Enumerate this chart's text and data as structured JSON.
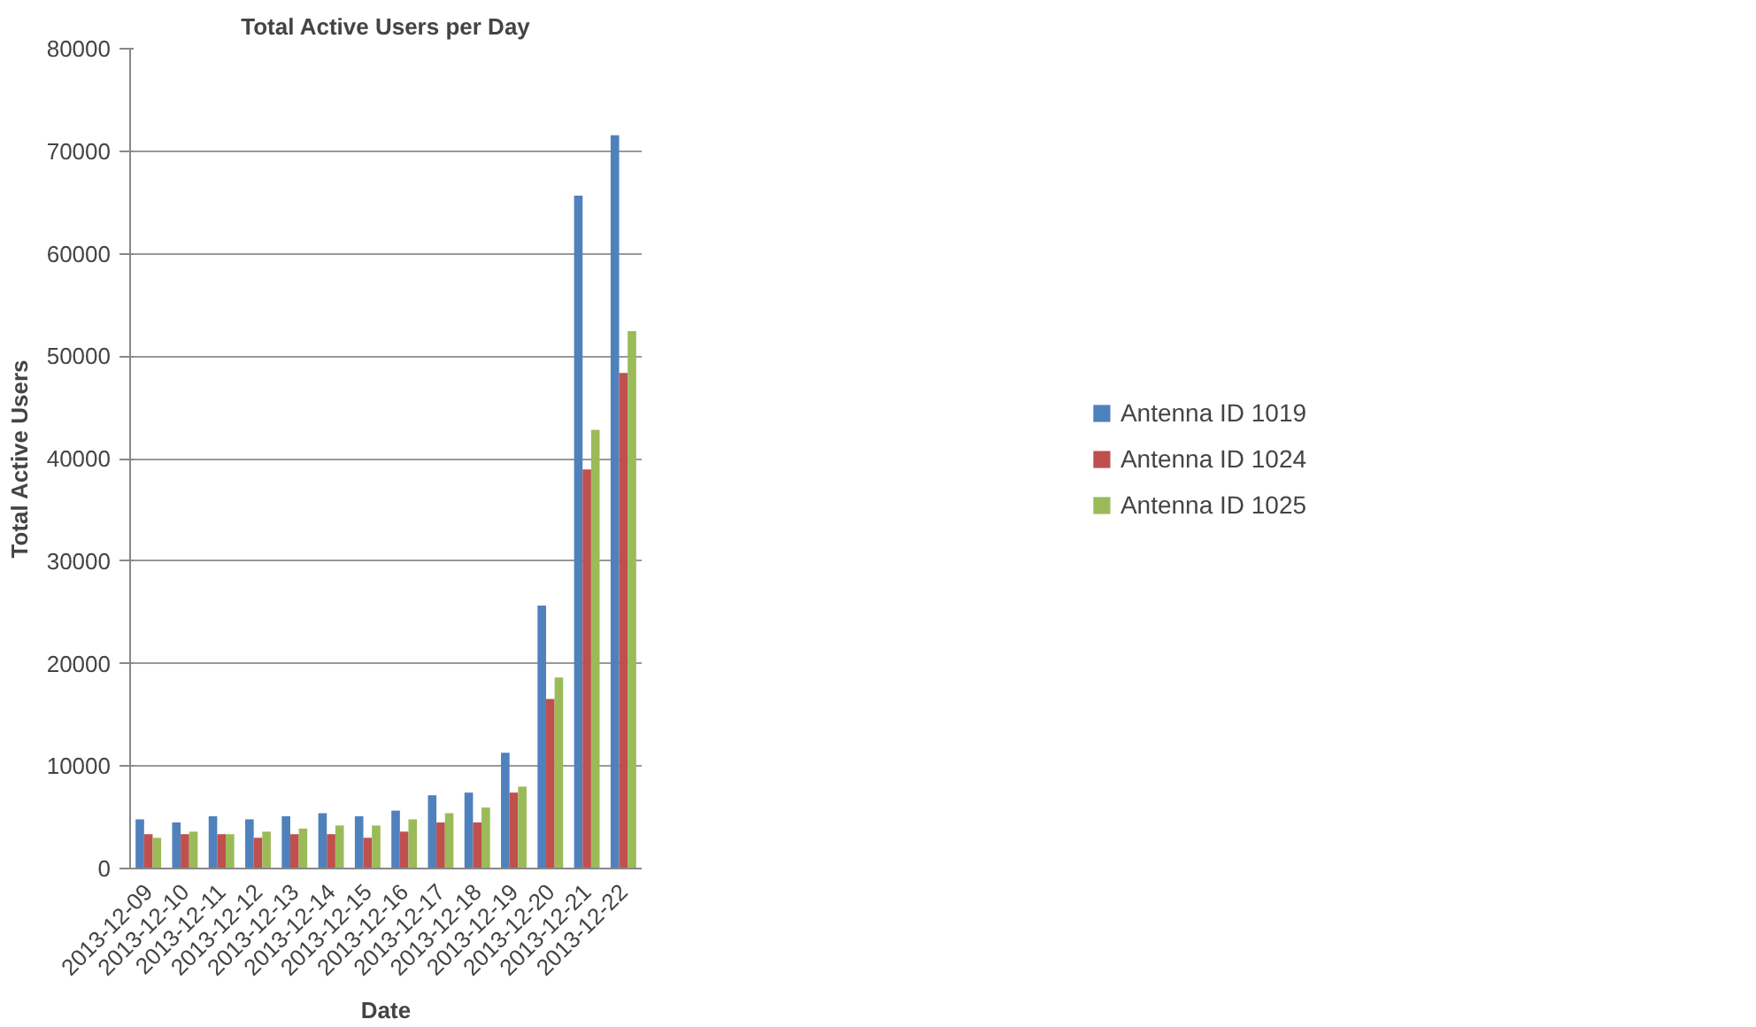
{
  "chart_data": {
    "type": "bar",
    "title": "Total Active Users per Day",
    "xlabel": "Date",
    "ylabel": "Total Active Users",
    "categories": [
      "2013-12-09",
      "2013-12-10",
      "2013-12-11",
      "2013-12-12",
      "2013-12-13",
      "2013-12-14",
      "2013-12-15",
      "2013-12-16",
      "2013-12-17",
      "2013-12-18",
      "2013-12-19",
      "2013-12-20",
      "2013-12-21",
      "2013-12-22"
    ],
    "series": [
      {
        "name": "Antenna ID 1019",
        "color": "#4f81bd",
        "values": [
          4800,
          4500,
          5100,
          4800,
          5100,
          5400,
          5100,
          5650,
          7150,
          7400,
          11300,
          25650,
          65650,
          71550
        ]
      },
      {
        "name": "Antenna ID 1024",
        "color": "#c0504d",
        "values": [
          3350,
          3350,
          3350,
          3000,
          3350,
          3350,
          3000,
          3600,
          4500,
          4500,
          7400,
          16550,
          38950,
          48350
        ]
      },
      {
        "name": "Antenna ID 1025",
        "color": "#9bbb59",
        "values": [
          3000,
          3600,
          3350,
          3600,
          3900,
          4200,
          4200,
          4800,
          5400,
          5950,
          8000,
          18650,
          42800,
          52450
        ]
      }
    ],
    "ylim": [
      0,
      80000
    ],
    "yticks": [
      0,
      10000,
      20000,
      30000,
      40000,
      50000,
      60000,
      70000,
      80000
    ],
    "grid": "y",
    "legend": "right"
  }
}
